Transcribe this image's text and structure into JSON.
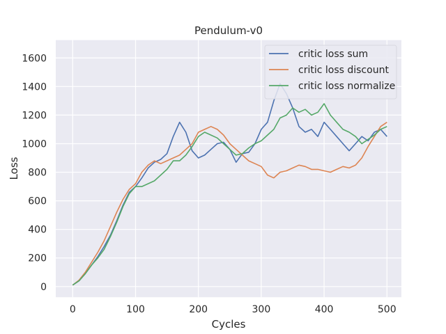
{
  "chart_data": {
    "type": "line",
    "title": "Pendulum-v0",
    "xlabel": "Cycles",
    "ylabel": "Loss",
    "xlim": [
      -27,
      523
    ],
    "ylim": [
      -75,
      1725
    ],
    "xticks": [
      0,
      100,
      200,
      300,
      400,
      500
    ],
    "yticks": [
      0,
      200,
      400,
      600,
      800,
      1000,
      1200,
      1400,
      1600
    ],
    "grid": true,
    "legend_position": "top-right",
    "background": "#eaeaf2",
    "x": [
      0,
      10,
      20,
      30,
      40,
      50,
      60,
      70,
      80,
      90,
      100,
      110,
      120,
      130,
      140,
      150,
      160,
      170,
      180,
      190,
      200,
      210,
      220,
      230,
      240,
      250,
      260,
      270,
      280,
      290,
      300,
      310,
      320,
      330,
      340,
      350,
      360,
      370,
      380,
      390,
      400,
      410,
      420,
      430,
      440,
      450,
      460,
      470,
      480,
      490,
      500
    ],
    "series": [
      {
        "name": "critic loss sum",
        "color": "#4c72b0",
        "values": [
          10,
          40,
          90,
          150,
          210,
          280,
          360,
          460,
          570,
          660,
          700,
          760,
          830,
          870,
          890,
          930,
          1050,
          1150,
          1080,
          950,
          900,
          920,
          960,
          1000,
          1010,
          960,
          870,
          930,
          940,
          1000,
          1100,
          1150,
          1300,
          1420,
          1350,
          1250,
          1120,
          1080,
          1100,
          1050,
          1150,
          1100,
          1050,
          1000,
          950,
          1000,
          1050,
          1020,
          1080,
          1100,
          1050
        ]
      },
      {
        "name": "critic loss discount",
        "color": "#dd8452",
        "values": [
          10,
          45,
          100,
          170,
          240,
          320,
          420,
          520,
          610,
          680,
          720,
          800,
          850,
          880,
          860,
          880,
          900,
          920,
          960,
          1000,
          1080,
          1100,
          1120,
          1100,
          1060,
          1000,
          960,
          920,
          880,
          860,
          840,
          780,
          760,
          800,
          810,
          830,
          850,
          840,
          820,
          820,
          810,
          800,
          820,
          840,
          830,
          850,
          900,
          980,
          1050,
          1120,
          1150
        ]
      },
      {
        "name": "critic loss normalize",
        "color": "#55a868",
        "values": [
          10,
          40,
          90,
          150,
          200,
          260,
          350,
          450,
          560,
          650,
          700,
          700,
          720,
          740,
          780,
          820,
          880,
          880,
          920,
          980,
          1050,
          1080,
          1060,
          1040,
          1000,
          960,
          920,
          930,
          970,
          1000,
          1020,
          1060,
          1100,
          1180,
          1200,
          1250,
          1220,
          1240,
          1200,
          1220,
          1280,
          1200,
          1150,
          1100,
          1080,
          1050,
          1000,
          1030,
          1060,
          1100,
          1120
        ]
      }
    ]
  }
}
